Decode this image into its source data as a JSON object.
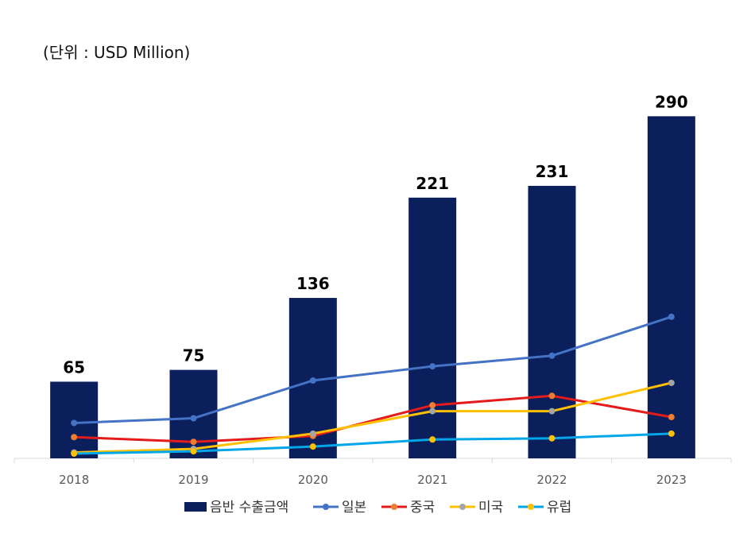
{
  "unit_label": "(단위 : USD Million)",
  "chart_data": {
    "type": "bar+line",
    "title": "",
    "unit": "(단위 : USD Million)",
    "categories": [
      "2018",
      "2019",
      "2020",
      "2021",
      "2022",
      "2023"
    ],
    "bar_series": {
      "name": "음반 수출금액",
      "values": [
        65,
        75,
        136,
        221,
        231,
        290
      ],
      "color": "#0A1F5C"
    },
    "line_series": [
      {
        "name": "일본",
        "values": [
          30,
          34,
          66,
          78,
          87,
          120
        ],
        "color": "#4472C4",
        "marker": "#4472C4"
      },
      {
        "name": "중국",
        "values": [
          18,
          14,
          19,
          45,
          53,
          35
        ],
        "color": "#E31B1B",
        "marker": "#ED7D31"
      },
      {
        "name": "미국",
        "values": [
          5,
          8,
          21,
          40,
          40,
          64
        ],
        "color": "#FFC000",
        "marker": "#A5A5A5"
      },
      {
        "name": "유럽",
        "values": [
          4,
          6,
          10,
          16,
          17,
          21
        ],
        "color": "#00A6E8",
        "marker": "#FFC000"
      }
    ],
    "ylim": [
      0,
      290
    ],
    "grid": false,
    "legend_position": "bottom"
  }
}
